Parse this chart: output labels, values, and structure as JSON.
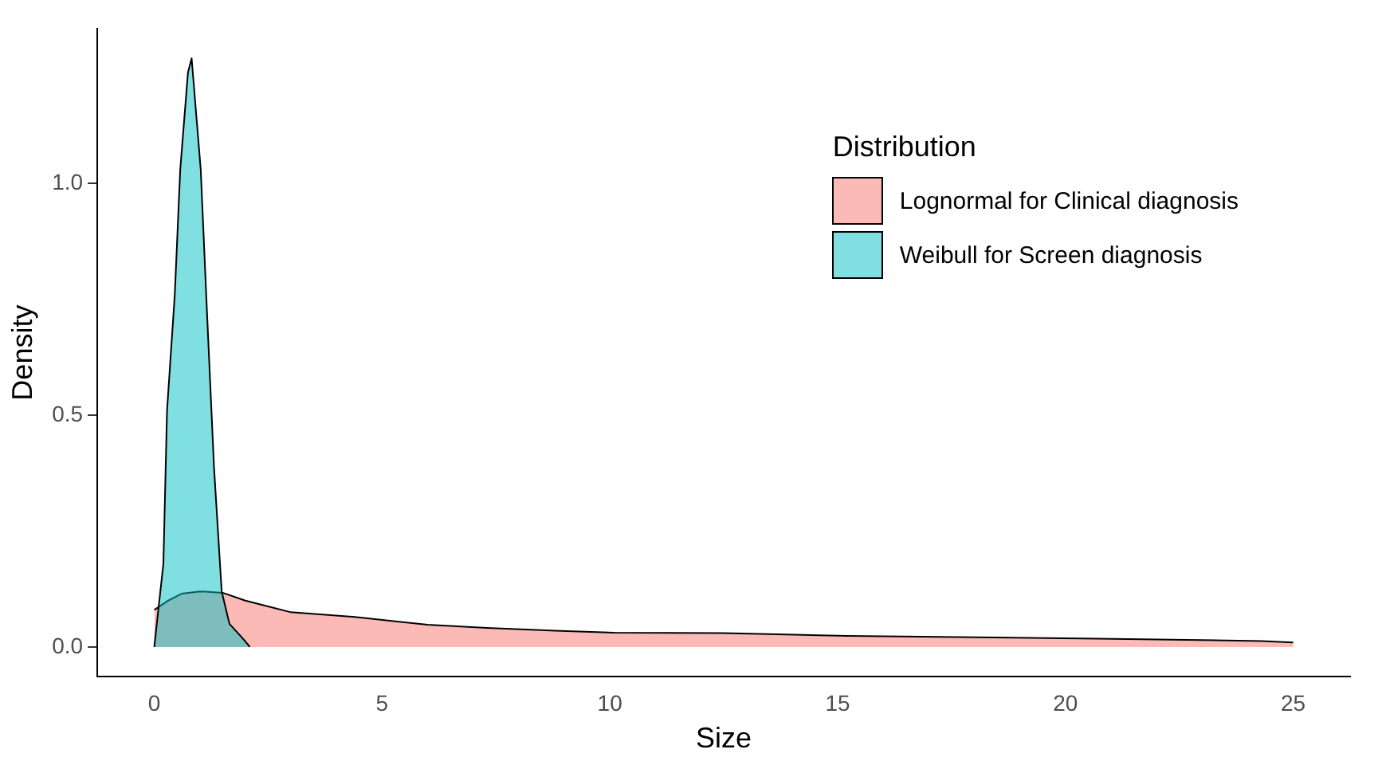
{
  "chart_data": {
    "type": "area",
    "xlabel": "Size",
    "ylabel": "Density",
    "legend_title": "Distribution",
    "legend": "top right",
    "xlim": [
      -1.25,
      26.25
    ],
    "ylim": [
      -0.064,
      1.334
    ],
    "xticks": [
      0,
      5,
      10,
      15,
      20,
      25
    ],
    "yticks": [
      {
        "value": 0,
        "label": "0.0"
      },
      {
        "value": 0.5,
        "label": "0.5"
      },
      {
        "value": 1,
        "label": "1.0"
      }
    ],
    "series": [
      {
        "name": "Lognormal for Clinical diagnosis",
        "color": "#f8766d",
        "x": [
          0,
          0.3,
          0.6,
          1.0,
          1.5,
          2.0,
          3.0,
          4.4,
          6.0,
          7.3,
          8.8,
          10.1,
          12.5,
          15.2,
          20.7,
          24.3,
          25
        ],
        "values": [
          0.08,
          0.1,
          0.115,
          0.12,
          0.117,
          0.1,
          0.075,
          0.065,
          0.048,
          0.041,
          0.035,
          0.031,
          0.03,
          0.024,
          0.018,
          0.013,
          0.01
        ]
      },
      {
        "name": "Weibull for Screen diagnosis",
        "color": "#00bfc4",
        "x": [
          0,
          0.2,
          0.28,
          0.45,
          0.57,
          0.74,
          0.82,
          1.02,
          1.14,
          1.31,
          1.48,
          1.65,
          1.93,
          2.1
        ],
        "values": [
          0,
          0.18,
          0.51,
          0.76,
          1.03,
          1.24,
          1.27,
          1.03,
          0.76,
          0.39,
          0.12,
          0.05,
          0.02,
          0
        ]
      }
    ]
  }
}
